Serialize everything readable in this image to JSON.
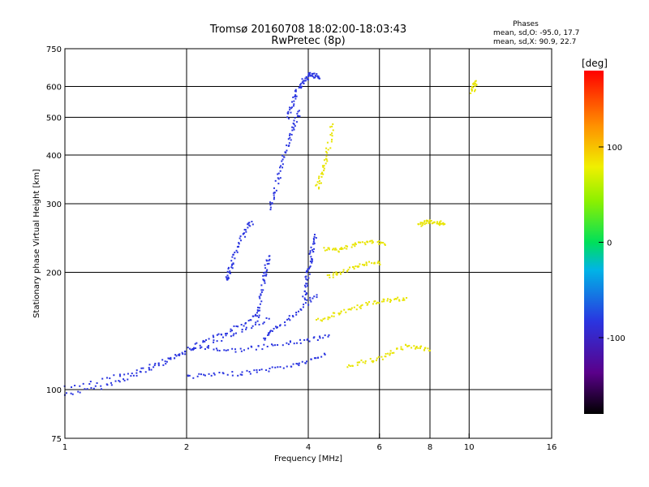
{
  "chart_data": {
    "type": "scatter",
    "title": "Tromsø 20160708 18:02:00-18:03:43",
    "subtitle": "RwPretec (8p)",
    "xlabel": "Frequency [MHz]",
    "ylabel": "Stationary phase Virtual Height [km]",
    "x_scale": "log2",
    "y_scale": "log",
    "xlim": [
      1,
      16
    ],
    "ylim": [
      75,
      750
    ],
    "x_ticks": [
      1,
      2,
      4,
      6,
      8,
      10,
      16
    ],
    "x_tick_labels": [
      "1",
      "2",
      "4",
      "6",
      "8",
      "10",
      "16"
    ],
    "x_grid": [
      2,
      4,
      6,
      8,
      10
    ],
    "y_ticks": [
      75,
      100,
      200,
      300,
      400,
      500,
      600,
      750
    ],
    "y_tick_labels": [
      "75",
      "100",
      "200",
      "300",
      "400",
      "500",
      "600",
      "750"
    ],
    "y_grid": [
      100,
      200,
      300,
      400,
      500,
      600
    ],
    "grid": true,
    "stats": {
      "heading": "Phases",
      "line_o": "mean, sd,O: -95.0, 17.7",
      "line_x": "mean, sd,X:  90.9, 22.7"
    },
    "colorbar": {
      "label": "[deg]",
      "range": [
        -180,
        180
      ],
      "ticks": [
        100,
        0,
        -100
      ],
      "tick_labels": [
        "100",
        "0",
        "-100"
      ],
      "position": "right"
    },
    "series": [
      {
        "name": "O",
        "phase_mean": -95.0,
        "phase_sd": 17.7,
        "color": "#2a35e0",
        "traces": [
          {
            "x": [
              1.0,
              1.2,
              1.4,
              1.6,
              1.8,
              2.0,
              2.2,
              2.5,
              2.8,
              3.0
            ],
            "y": [
              97,
              101,
              106,
              112,
              119,
              126,
              132,
              140,
              148,
              160
            ]
          },
          {
            "x": [
              1.0,
              1.3,
              1.6,
              2.0,
              2.4,
              2.8,
              3.2
            ],
            "y": [
              101,
              107,
              114,
              124,
              134,
              143,
              152
            ]
          },
          {
            "x": [
              2.0,
              2.3,
              2.7,
              3.1,
              3.6,
              4.0,
              4.4
            ],
            "y": [
              108,
              109,
              110,
              112,
              115,
              118,
              123
            ]
          },
          {
            "x": [
              2.2,
              2.6,
              3.0,
              3.5,
              4.0,
              4.5
            ],
            "y": [
              128,
              126,
              128,
              131,
              134,
              138
            ]
          },
          {
            "x": [
              3.1,
              3.3,
              3.6,
              3.9,
              4.2
            ],
            "y": [
              135,
              142,
              152,
              165,
              175
            ]
          },
          {
            "x": [
              3.0,
              3.05,
              3.1,
              3.15,
              3.2
            ],
            "y": [
              150,
              170,
              190,
              205,
              220
            ]
          },
          {
            "x": [
              3.2,
              3.3,
              3.4,
              3.5,
              3.6,
              3.7,
              3.8
            ],
            "y": [
              290,
              320,
              360,
              400,
              440,
              480,
              520
            ]
          },
          {
            "x": [
              3.55,
              3.65,
              3.75,
              3.85,
              3.95,
              4.05,
              4.15,
              4.25
            ],
            "y": [
              500,
              540,
              580,
              610,
              630,
              645,
              640,
              630
            ]
          },
          {
            "x": [
              3.9,
              3.95,
              4.0,
              4.05,
              4.1,
              4.15
            ],
            "y": [
              170,
              185,
              200,
              215,
              230,
              250
            ]
          },
          {
            "x": [
              2.5,
              2.55,
              2.6,
              2.7,
              2.8,
              2.9
            ],
            "y": [
              190,
              200,
              215,
              235,
              255,
              270
            ]
          }
        ]
      },
      {
        "name": "X",
        "phase_mean": 90.9,
        "phase_sd": 22.7,
        "color": "#e8e400",
        "traces": [
          {
            "x": [
              4.2,
              4.3,
              4.4,
              4.5,
              4.6
            ],
            "y": [
              330,
              350,
              380,
              420,
              480
            ]
          },
          {
            "x": [
              4.4,
              4.7,
              5.0,
              5.4,
              5.8,
              6.2
            ],
            "y": [
              230,
              228,
              232,
              238,
              240,
              235
            ]
          },
          {
            "x": [
              4.5,
              4.8,
              5.2,
              5.6,
              6.0
            ],
            "y": [
              195,
              200,
              205,
              210,
              212
            ]
          },
          {
            "x": [
              4.2,
              4.6,
              5.0,
              5.5,
              6.0,
              6.5,
              7.0
            ],
            "y": [
              150,
              155,
              160,
              165,
              168,
              170,
              172
            ]
          },
          {
            "x": [
              5.0,
              5.5,
              6.0,
              6.5,
              7.0,
              7.5,
              8.0
            ],
            "y": [
              115,
              118,
              120,
              125,
              130,
              128,
              126
            ]
          },
          {
            "x": [
              7.5,
              7.8,
              8.1,
              8.4,
              8.7
            ],
            "y": [
              265,
              268,
              270,
              268,
              266
            ]
          },
          {
            "x": [
              10.2,
              10.3,
              10.4
            ],
            "y": [
              580,
              600,
              620
            ]
          }
        ]
      }
    ]
  }
}
